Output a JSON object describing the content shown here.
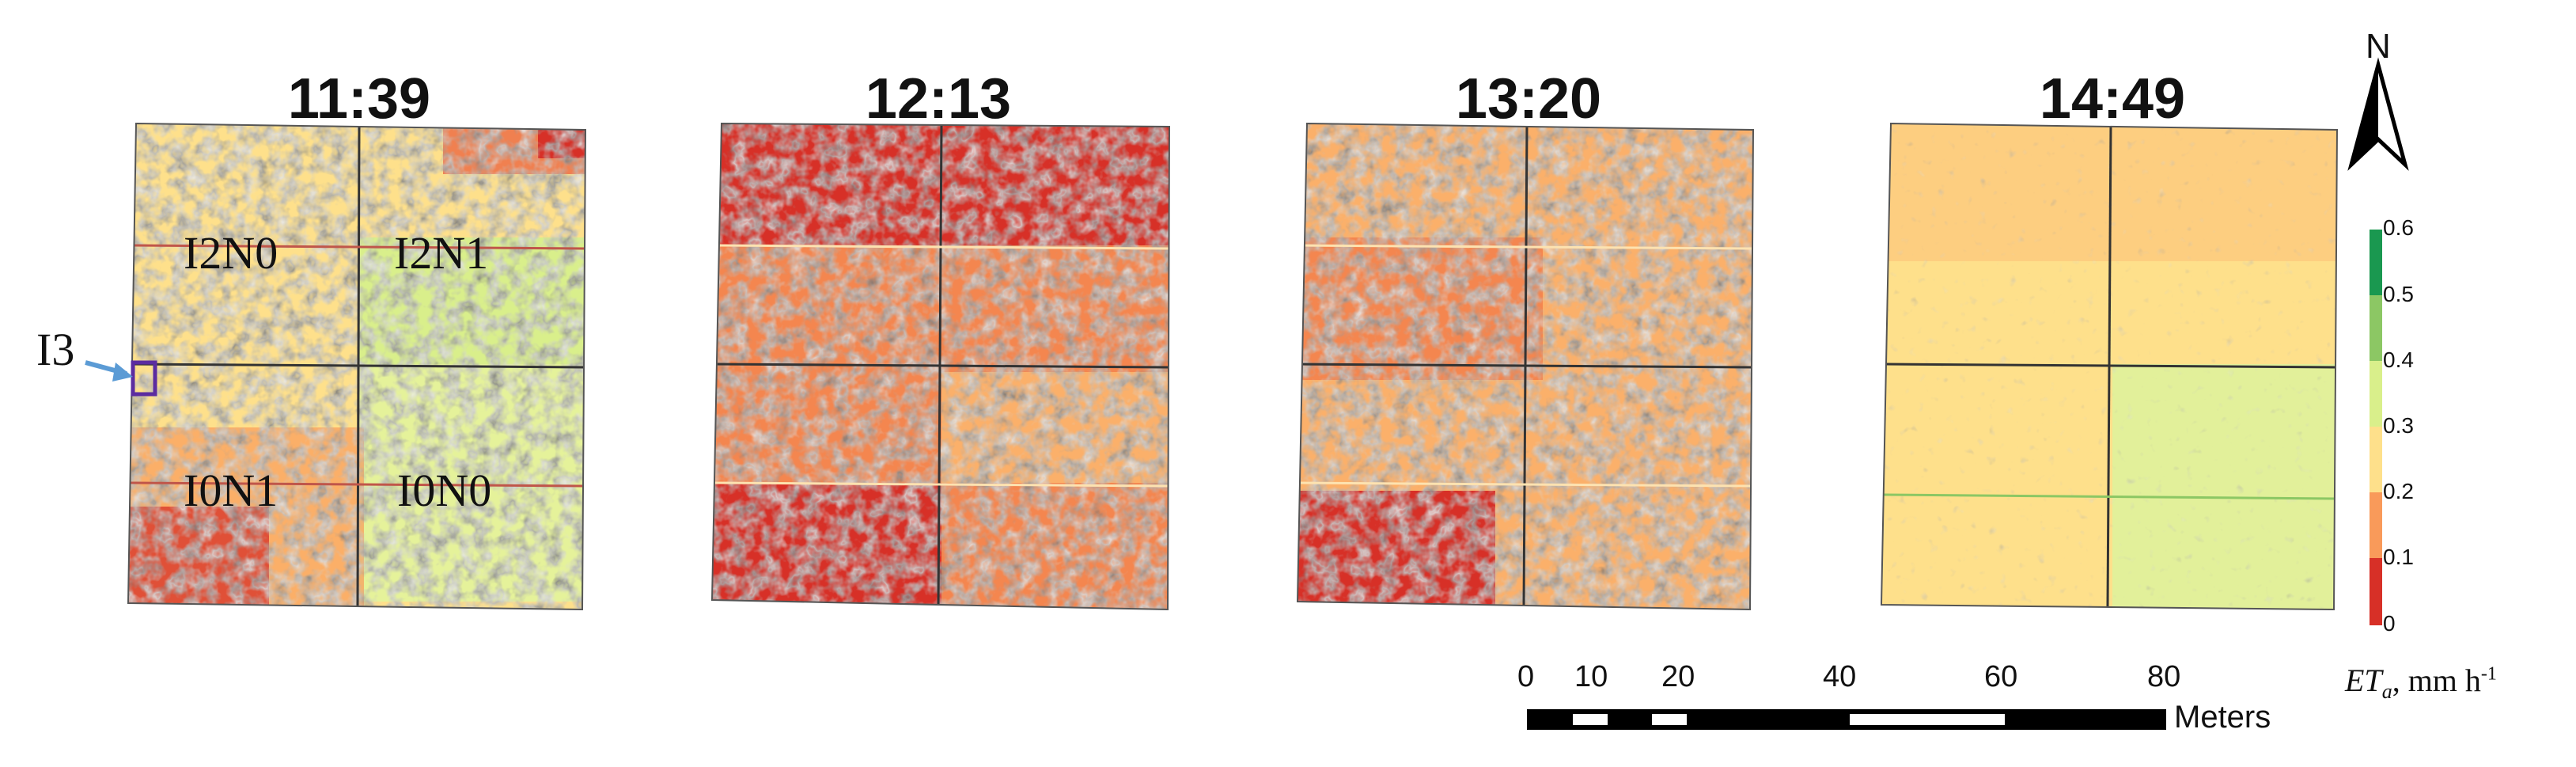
{
  "panels": [
    {
      "time": "11:39",
      "labels": [
        "I2N0",
        "I2N1",
        "I0N1",
        "I0N0"
      ]
    },
    {
      "time": "12:13"
    },
    {
      "time": "13:20"
    },
    {
      "time": "14:49"
    }
  ],
  "inset": {
    "label": "I3"
  },
  "north_arrow": {
    "label": "N"
  },
  "scale_bar": {
    "ticks": [
      "0",
      "10",
      "20",
      "40",
      "60",
      "80"
    ],
    "unit": "Meters"
  },
  "legend": {
    "ticks": [
      "0.6",
      "0.5",
      "0.4",
      "0.3",
      "0.2",
      "0.1",
      "0"
    ],
    "title_main": "ET",
    "title_sub": "a",
    "title_unit": ", mm h",
    "title_exp": "-1",
    "classes": [
      {
        "range": "0.5-0.6",
        "color": "#1a9850"
      },
      {
        "range": "0.4-0.5",
        "color": "#8cc764"
      },
      {
        "range": "0.3-0.4",
        "color": "#d9ef8b"
      },
      {
        "range": "0.2-0.3",
        "color": "#fee08b"
      },
      {
        "range": "0.1-0.2",
        "color": "#f99a5a"
      },
      {
        "range": "0-0.1",
        "color": "#d73027"
      }
    ]
  }
}
